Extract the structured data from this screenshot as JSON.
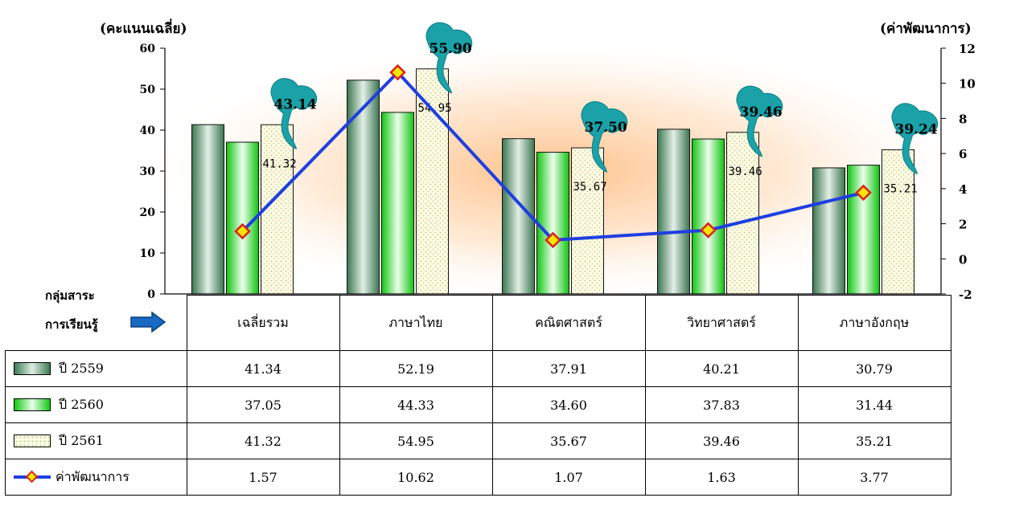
{
  "chart_data": {
    "type": "bar",
    "left_axis_title": "(คะแนนเฉลี่ย)",
    "right_axis_title": "(ค่าพัฒนาการ)",
    "left_ylim": [
      0,
      60
    ],
    "left_ticks": [
      "0",
      "10",
      "20",
      "30",
      "40",
      "50",
      "60"
    ],
    "right_ylim": [
      -2,
      12
    ],
    "right_ticks": [
      "-2",
      "0",
      "2",
      "4",
      "6",
      "8",
      "10",
      "12"
    ],
    "categories": [
      "เฉลี่ยรวม",
      "ภาษาไทย",
      "คณิตศาสตร์",
      "วิทยาศาสตร์",
      "ภาษาอังกฤษ"
    ],
    "series": [
      {
        "name": "ปี 2559",
        "values": [
          41.34,
          52.19,
          37.91,
          40.21,
          30.79
        ],
        "axis": "left"
      },
      {
        "name": "ปี 2560",
        "values": [
          37.05,
          44.33,
          34.6,
          37.83,
          31.44
        ],
        "axis": "left"
      },
      {
        "name": "ปี 2561",
        "values": [
          41.32,
          54.95,
          35.67,
          39.46,
          35.21
        ],
        "axis": "left"
      },
      {
        "name": "ค่าพัฒนาการ",
        "values": [
          1.57,
          10.62,
          1.07,
          1.63,
          3.77
        ],
        "axis": "right",
        "kind": "line"
      }
    ],
    "bar_labels": [
      "41.32",
      "54.95",
      "35.67",
      "39.46",
      "35.21"
    ],
    "map_labels": [
      "43.14",
      "55.90",
      "37.50",
      "39.46",
      "39.24"
    ],
    "grid": false,
    "legend": "data table below chart",
    "colors": {
      "line": "#1f3fe0",
      "marker_fill": "#f2e600",
      "marker_edge": "#e0201c",
      "map": "#1aa2a8"
    }
  },
  "side_labels": {
    "group_line1": "กลุ่มสาระ",
    "group_line2": "การเรียนรู้"
  },
  "table": {
    "row_labels": [
      "ปี 2559",
      "ปี 2560",
      "ปี 2561",
      "ค่าพัฒนาการ"
    ],
    "rows": [
      [
        "41.34",
        "52.19",
        "37.91",
        "40.21",
        "30.79"
      ],
      [
        "37.05",
        "44.33",
        "34.60",
        "37.83",
        "31.44"
      ],
      [
        "41.32",
        "54.95",
        "35.67",
        "39.46",
        "35.21"
      ],
      [
        "1.57",
        "10.62",
        "1.07",
        "1.63",
        "3.77"
      ]
    ]
  },
  "icons": {
    "arrow": "blue-arrow-right-icon",
    "map": "thailand-map-icon"
  }
}
